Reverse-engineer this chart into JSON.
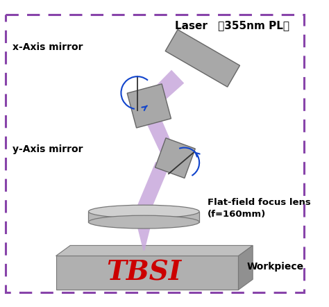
{
  "bg_color": "#ffffff",
  "border_color": "#8844aa",
  "beam_color": "#c8a8dc",
  "mirror_color": "#a8a8a8",
  "mirror_dark": "#888888",
  "workpiece_top": "#c0c0c0",
  "workpiece_front": "#b0b0b0",
  "workpiece_right": "#909090",
  "lens_top": "#d0d0d0",
  "lens_body": "#b8b8b8",
  "lens_bot": "#a8a8a8",
  "tbsi_color": "#cc0000",
  "arrow_color": "#1144cc",
  "text_color": "#000000",
  "label_laser": "Laser （355nm PL）",
  "label_x_mirror": "x-Axis mirror",
  "label_y_mirror": "y-Axis mirror",
  "label_lens_line1": "Flat-field focus lens",
  "label_lens_line2": "(f=160mm)",
  "label_workpiece": "Workpiece",
  "label_tbsi": "TBSI"
}
